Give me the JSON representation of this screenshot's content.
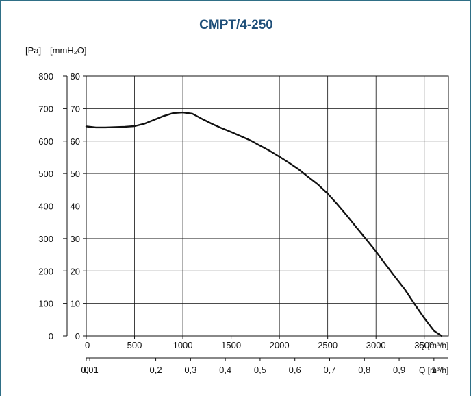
{
  "chart_data": {
    "type": "line",
    "title": "CMPT/4-250",
    "ylabel_pa": "[Pa]",
    "ylabel_mmh2o": "[mmH₂O]",
    "xlabel_m3h": "Q [m³/h]",
    "xlabel_m3s": "Q [m³/h]",
    "grid": true,
    "xlim": [
      0,
      3750
    ],
    "ylim": [
      0,
      800
    ],
    "xticks_m3h": [
      "0",
      "500",
      "1000",
      "1500",
      "2000",
      "2500",
      "3000",
      "3500"
    ],
    "xticks_m3s": [
      {
        "label": "0",
        "q": 0
      },
      {
        "label": "0,01",
        "q": 36
      },
      {
        "label": "0,2",
        "q": 720
      },
      {
        "label": "0,3",
        "q": 1080
      },
      {
        "label": "0,4",
        "q": 1440
      },
      {
        "label": "0,5",
        "q": 1800
      },
      {
        "label": "0,6",
        "q": 2160
      },
      {
        "label": "0,7",
        "q": 2520
      },
      {
        "label": "0,8",
        "q": 2880
      },
      {
        "label": "0,9",
        "q": 3240
      },
      {
        "label": "1",
        "q": 3600
      }
    ],
    "yticks_pa": [
      "0",
      "100",
      "200",
      "300",
      "400",
      "500",
      "600",
      "700",
      "800"
    ],
    "yticks_mmh2o": [
      "0",
      "10",
      "20",
      "30",
      "40",
      "50",
      "60",
      "70",
      "80"
    ],
    "series": [
      {
        "x": [
          0,
          100,
          200,
          300,
          400,
          500,
          600,
          700,
          800,
          900,
          1000,
          1100,
          1200,
          1300,
          1400,
          1500,
          1600,
          1700,
          1800,
          1900,
          2000,
          2100,
          2200,
          2300,
          2400,
          2500,
          2600,
          2700,
          2800,
          2900,
          3000,
          3100,
          3200,
          3300,
          3400,
          3500,
          3600,
          3680
        ],
        "y": [
          645,
          642,
          642,
          643,
          644,
          646,
          653,
          665,
          677,
          686,
          688,
          684,
          668,
          653,
          640,
          628,
          615,
          602,
          586,
          570,
          552,
          533,
          513,
          489,
          466,
          438,
          405,
          370,
          333,
          297,
          260,
          220,
          181,
          143,
          98,
          55,
          16,
          0
        ]
      }
    ]
  }
}
